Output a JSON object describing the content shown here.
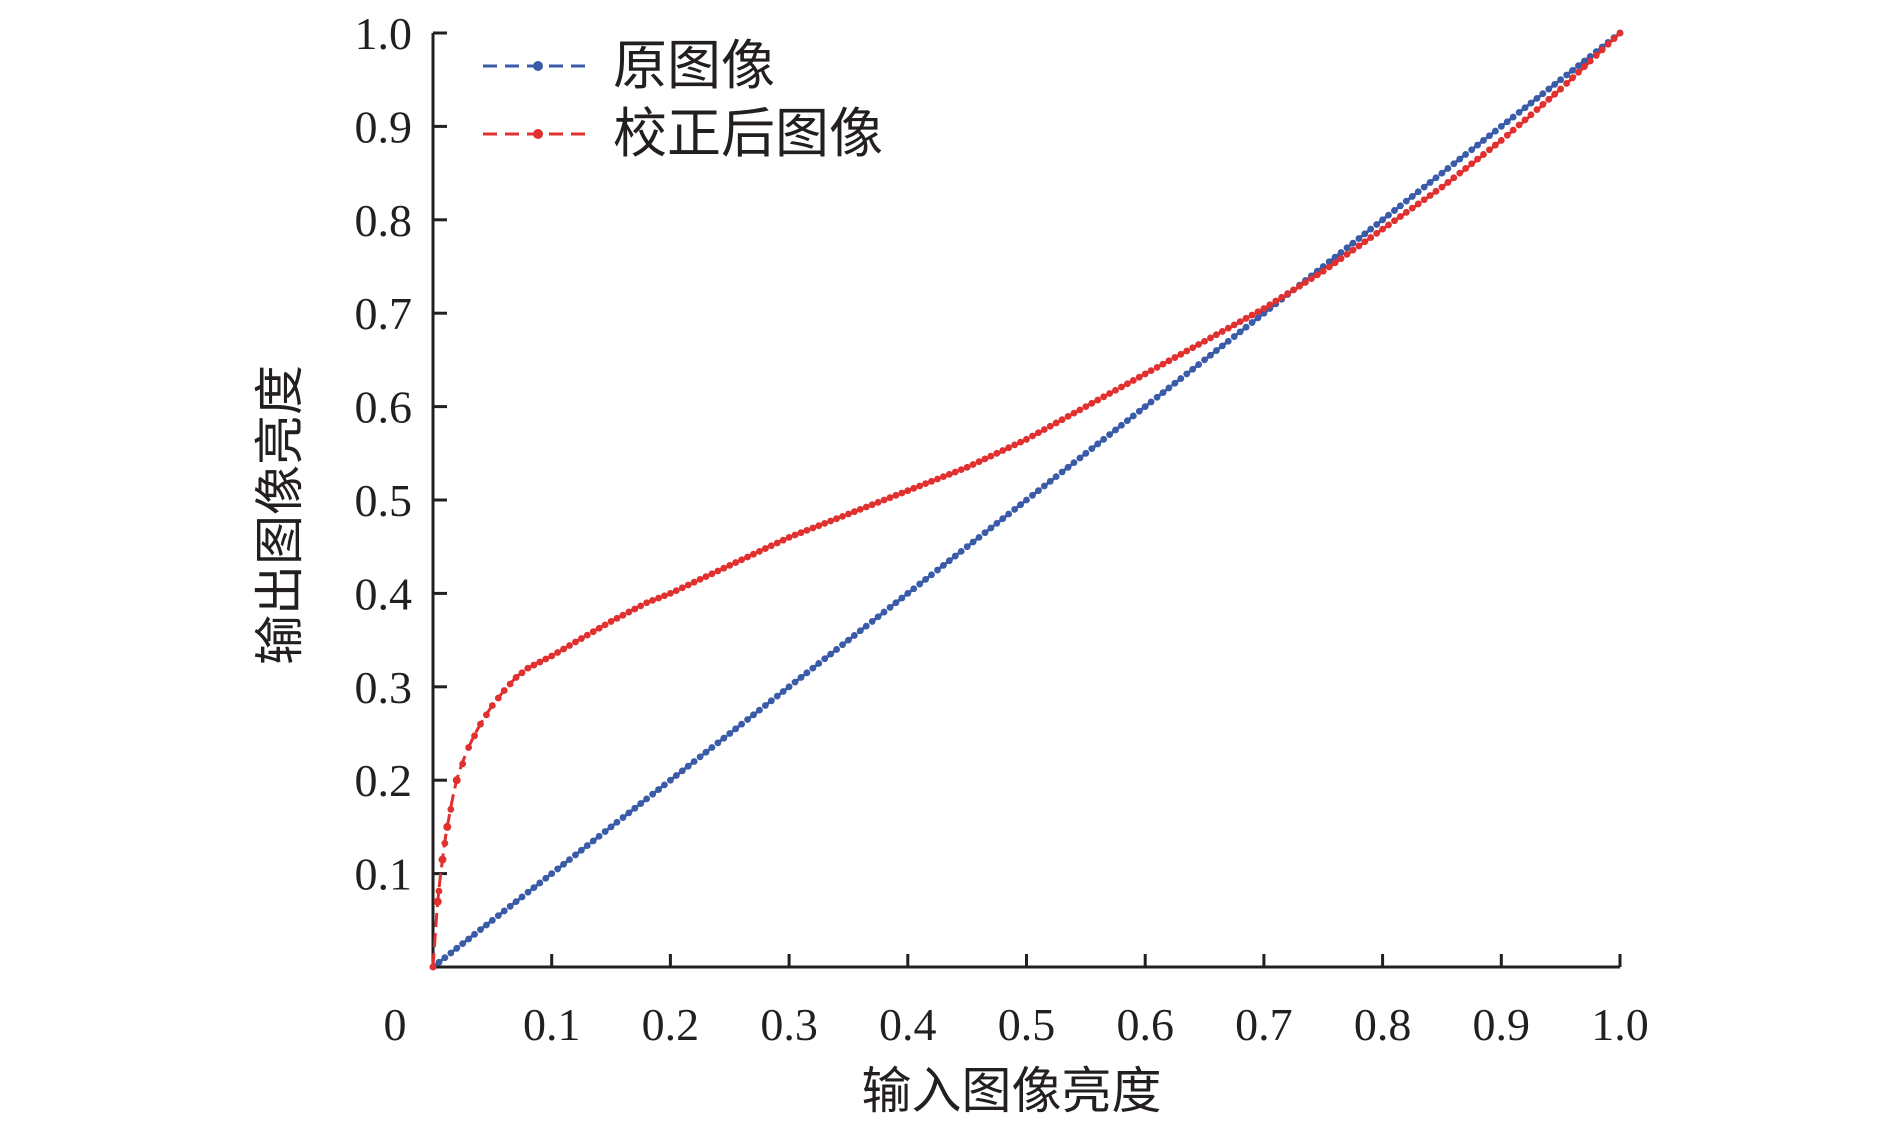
{
  "chart_data": {
    "type": "line",
    "xlabel": "输入图像亮度",
    "ylabel": "输出图像亮度",
    "xlim": [
      0,
      1.0
    ],
    "ylim": [
      0,
      1.0
    ],
    "x_ticks": [
      "0",
      "0.1",
      "0.2",
      "0.3",
      "0.4",
      "0.5",
      "0.6",
      "0.7",
      "0.8",
      "0.9",
      "1.0"
    ],
    "y_ticks": [
      "0.1",
      "0.2",
      "0.3",
      "0.4",
      "0.5",
      "0.6",
      "0.7",
      "0.8",
      "0.9",
      "1.0"
    ],
    "grid": false,
    "legend_position": "top-left",
    "series": [
      {
        "name": "原图像",
        "color": "#3a5ba8",
        "style": "dashed-dotted-markers",
        "x": [
          0,
          0.05,
          0.1,
          0.15,
          0.2,
          0.25,
          0.3,
          0.35,
          0.4,
          0.45,
          0.5,
          0.55,
          0.6,
          0.65,
          0.7,
          0.75,
          0.8,
          0.85,
          0.9,
          0.95,
          1.0
        ],
        "y": [
          0,
          0.05,
          0.1,
          0.15,
          0.2,
          0.25,
          0.3,
          0.35,
          0.4,
          0.45,
          0.5,
          0.55,
          0.6,
          0.65,
          0.7,
          0.75,
          0.8,
          0.85,
          0.9,
          0.95,
          1.0
        ]
      },
      {
        "name": "校正后图像",
        "color": "#e0302f",
        "style": "dashed-dotted-markers",
        "x": [
          0,
          0.004,
          0.008,
          0.012,
          0.02,
          0.03,
          0.04,
          0.05,
          0.06,
          0.07,
          0.08,
          0.1,
          0.12,
          0.15,
          0.18,
          0.2,
          0.25,
          0.3,
          0.35,
          0.4,
          0.45,
          0.5,
          0.55,
          0.6,
          0.65,
          0.7,
          0.75,
          0.8,
          0.85,
          0.9,
          0.95,
          1.0
        ],
        "y": [
          0,
          0.07,
          0.115,
          0.15,
          0.2,
          0.235,
          0.26,
          0.28,
          0.296,
          0.31,
          0.32,
          0.333,
          0.348,
          0.37,
          0.39,
          0.4,
          0.43,
          0.46,
          0.485,
          0.51,
          0.535,
          0.565,
          0.6,
          0.635,
          0.67,
          0.705,
          0.745,
          0.79,
          0.835,
          0.885,
          0.94,
          1.0
        ]
      }
    ]
  }
}
